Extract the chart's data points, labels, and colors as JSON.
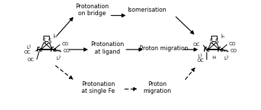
{
  "bg_color": "#ffffff",
  "text_color": "#000000",
  "figsize": [
    3.78,
    1.6
  ],
  "dpi": 100,
  "labels": {
    "protonation_bridge": "Protonation\non bridge",
    "isomerisation": "Isomerisation",
    "protonation_ligand": "Protonation\nat ligand",
    "proton_migration_top": "Proton migration",
    "protonation_single": "Protonation\nat single Fe",
    "proton_migration_bot": "Proton\nmigration"
  },
  "fs": 6.0,
  "fs_chem": 5.5,
  "fs_small": 4.8
}
